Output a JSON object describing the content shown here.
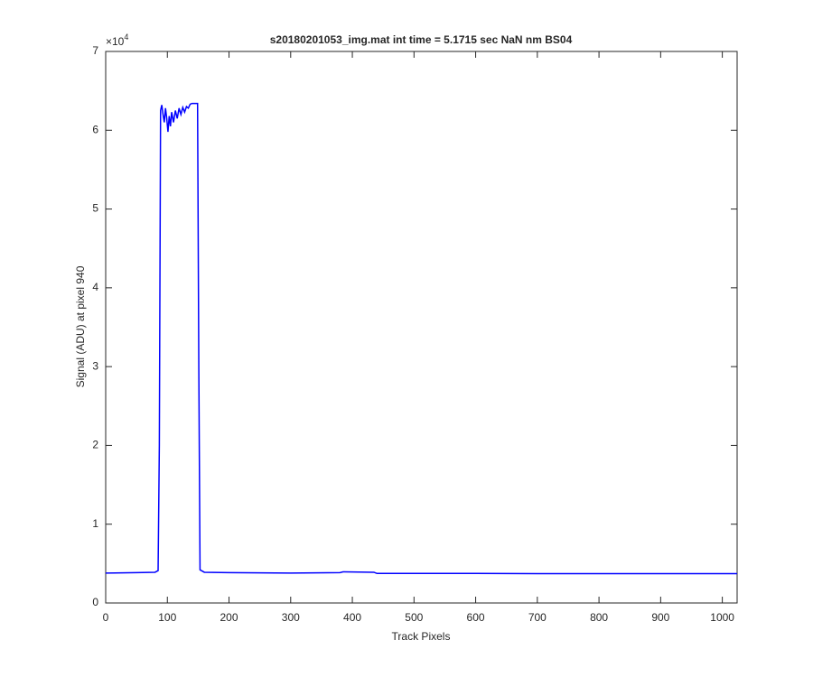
{
  "chart_data": {
    "type": "line",
    "title": "s20180201053_img.mat int time = 5.1715 sec  NaN nm BS04",
    "x_label": "Track Pixels",
    "y_label": "Signal (ADU) at pixel 940",
    "y_multiplier": {
      "base": "×10",
      "exponent": "4"
    },
    "color": "#0000ff",
    "x": [
      0,
      50,
      80,
      85,
      87,
      89,
      91,
      93,
      95,
      97,
      99,
      101,
      103,
      105,
      107,
      110,
      113,
      116,
      119,
      122,
      125,
      128,
      131,
      134,
      137,
      140,
      145,
      149,
      151,
      153,
      160,
      200,
      300,
      380,
      385,
      435,
      440,
      500,
      600,
      700,
      800,
      900,
      1000,
      1024
    ],
    "values": [
      3800,
      3850,
      3900,
      4100,
      20000,
      62500,
      63200,
      62000,
      61000,
      62800,
      61500,
      59800,
      61800,
      60500,
      62300,
      61000,
      62500,
      61500,
      62800,
      62000,
      62900,
      62300,
      63000,
      62800,
      63300,
      63400,
      63400,
      63400,
      30000,
      4200,
      3900,
      3850,
      3800,
      3850,
      3950,
      3900,
      3750,
      3750,
      3750,
      3720,
      3720,
      3730,
      3720,
      3720
    ],
    "xlim": [
      0,
      1024
    ],
    "xticks": [
      0,
      100,
      200,
      300,
      400,
      500,
      600,
      700,
      800,
      900,
      1000
    ],
    "ylim": [
      0,
      70000
    ],
    "yticks": [
      {
        "value": 0,
        "label": "0"
      },
      {
        "value": 10000,
        "label": "1"
      },
      {
        "value": 20000,
        "label": "2"
      },
      {
        "value": 30000,
        "label": "3"
      },
      {
        "value": 40000,
        "label": "4"
      },
      {
        "value": 50000,
        "label": "5"
      },
      {
        "value": 60000,
        "label": "6"
      },
      {
        "value": 70000,
        "label": "7"
      }
    ],
    "grid": false
  }
}
